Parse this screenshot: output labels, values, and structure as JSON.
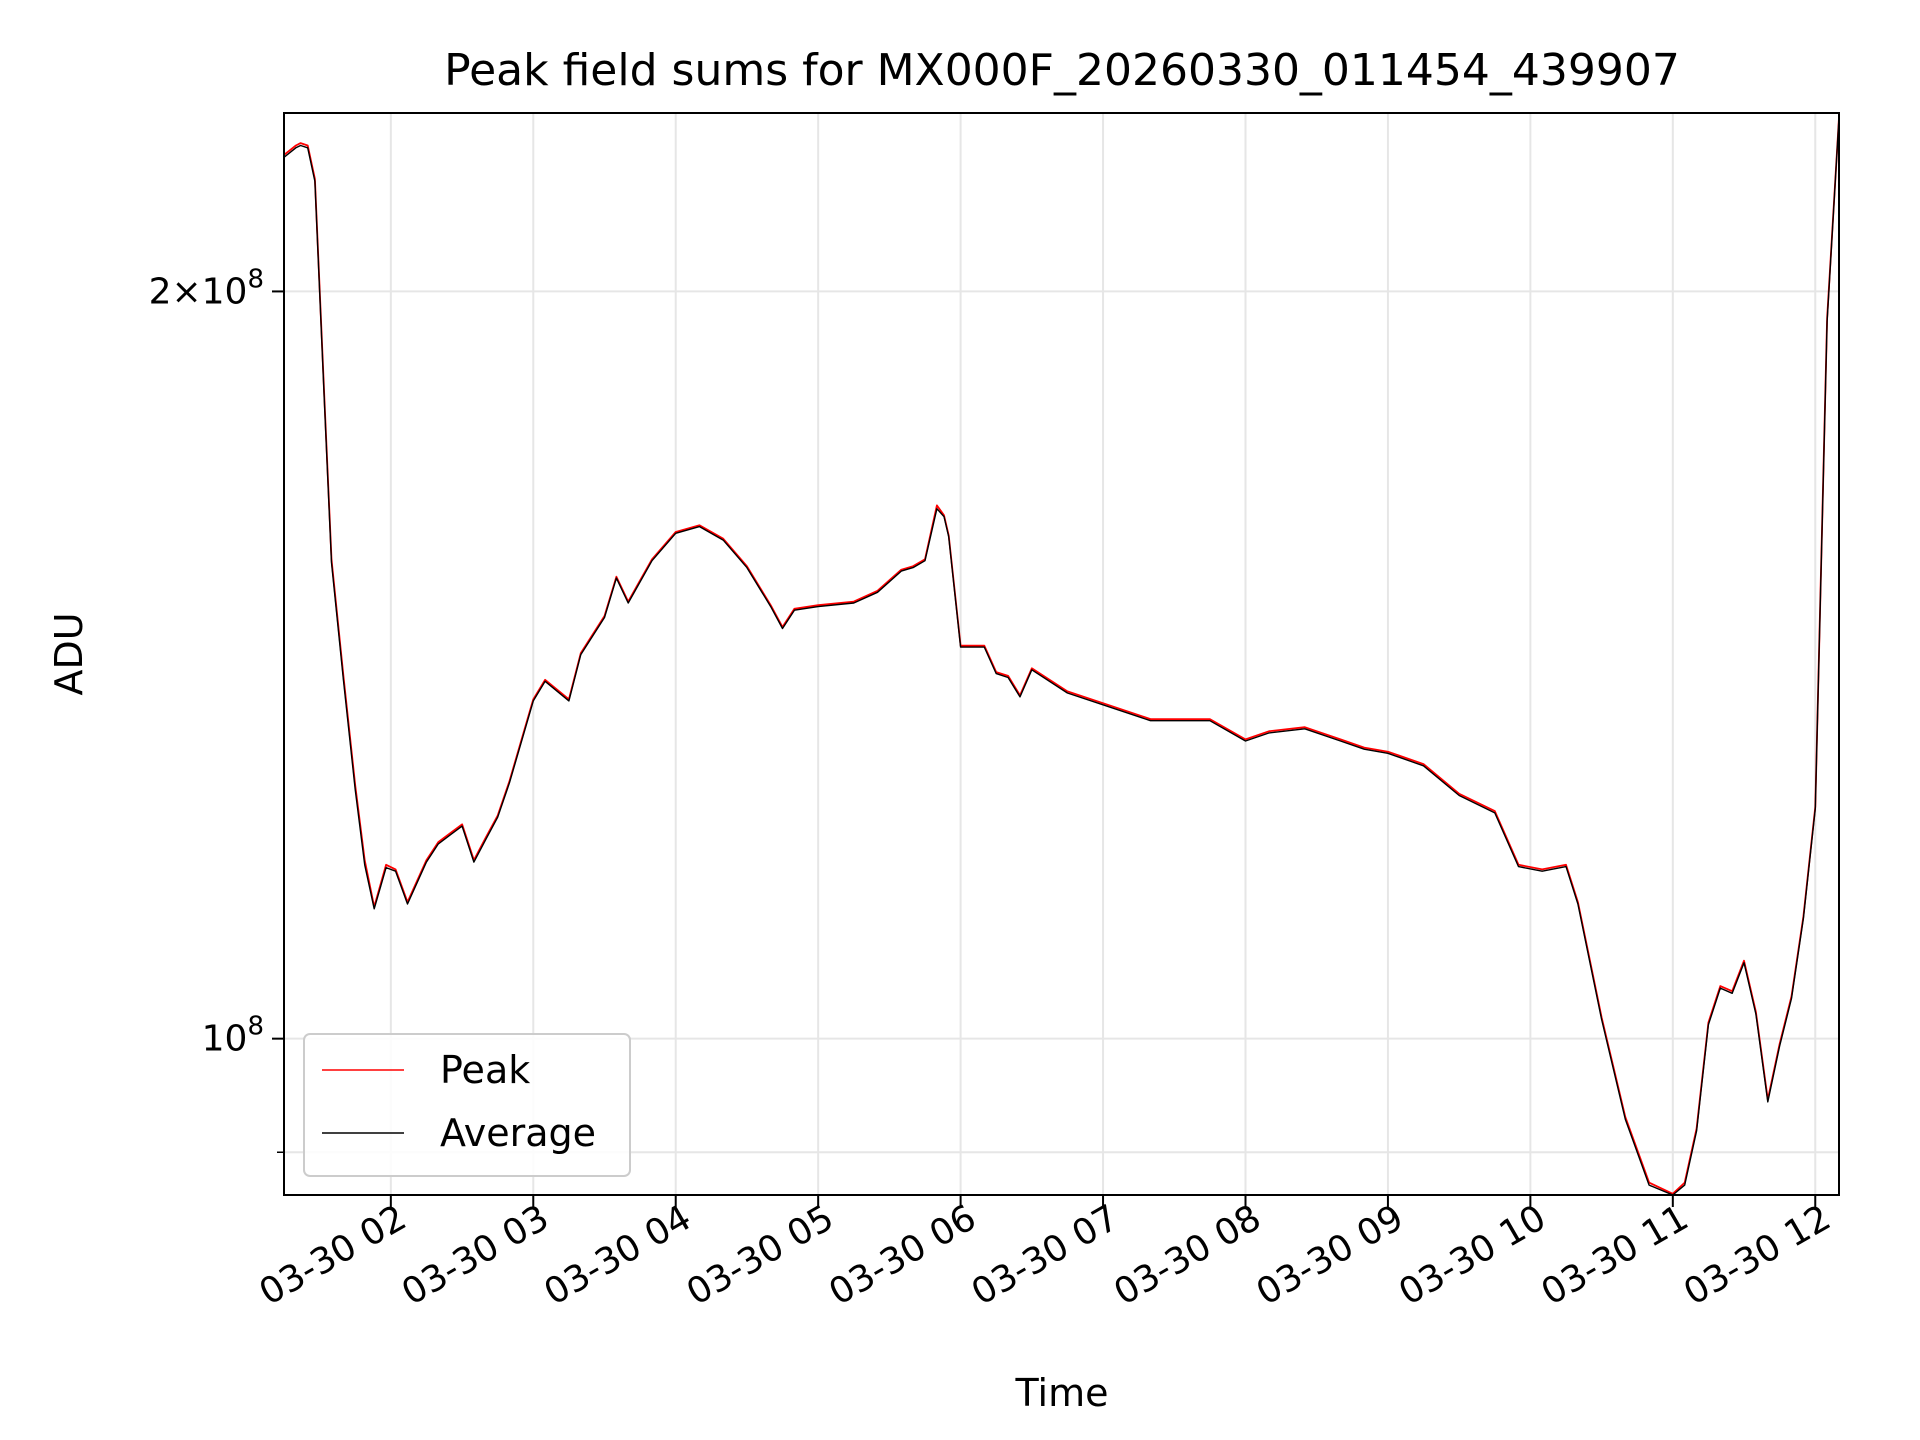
{
  "chart_data": {
    "type": "line",
    "title": "Peak field sums for MX000F_20260330_011454_439907",
    "xlabel": "Time",
    "ylabel": "ADU",
    "y_scale": "log",
    "grid": true,
    "legend_position": "lower-left",
    "colors": {
      "peak": "#ff0000",
      "average": "#000000",
      "grid": "#e6e6e6"
    },
    "xlim": [
      "2026-03-30 01:15",
      "2026-03-30 12:10"
    ],
    "ylim": [
      86500000,
      236000000
    ],
    "x_ticks": [
      "03-30 02",
      "03-30 03",
      "03-30 04",
      "03-30 05",
      "03-30 06",
      "03-30 07",
      "03-30 08",
      "03-30 09",
      "03-30 10",
      "03-30 11",
      "03-30 12"
    ],
    "x_tick_times": [
      "2026-03-30 02:00",
      "2026-03-30 03:00",
      "2026-03-30 04:00",
      "2026-03-30 05:00",
      "2026-03-30 06:00",
      "2026-03-30 07:00",
      "2026-03-30 08:00",
      "2026-03-30 09:00",
      "2026-03-30 10:00",
      "2026-03-30 11:00",
      "2026-03-30 12:00"
    ],
    "y_ticks": [
      {
        "value": 200000000,
        "base": "2×10",
        "exp": "8"
      },
      {
        "value": 100000000,
        "base": "10",
        "exp": "8"
      }
    ],
    "y_minor_ticks": [
      90000000
    ],
    "x": [
      "2026-03-30 01:15",
      "2026-03-30 01:20",
      "2026-03-30 01:22",
      "2026-03-30 01:25",
      "2026-03-30 01:28",
      "2026-03-30 01:32",
      "2026-03-30 01:35",
      "2026-03-30 01:40",
      "2026-03-30 01:45",
      "2026-03-30 01:49",
      "2026-03-30 01:53",
      "2026-03-30 01:58",
      "2026-03-30 02:02",
      "2026-03-30 02:07",
      "2026-03-30 02:15",
      "2026-03-30 02:20",
      "2026-03-30 02:25",
      "2026-03-30 02:30",
      "2026-03-30 02:35",
      "2026-03-30 02:40",
      "2026-03-30 02:45",
      "2026-03-30 02:50",
      "2026-03-30 03:00",
      "2026-03-30 03:05",
      "2026-03-30 03:15",
      "2026-03-30 03:20",
      "2026-03-30 03:30",
      "2026-03-30 03:35",
      "2026-03-30 03:40",
      "2026-03-30 03:50",
      "2026-03-30 04:00",
      "2026-03-30 04:10",
      "2026-03-30 04:20",
      "2026-03-30 04:30",
      "2026-03-30 04:40",
      "2026-03-30 04:45",
      "2026-03-30 04:50",
      "2026-03-30 05:00",
      "2026-03-30 05:15",
      "2026-03-30 05:25",
      "2026-03-30 05:35",
      "2026-03-30 05:40",
      "2026-03-30 05:45",
      "2026-03-30 05:50",
      "2026-03-30 05:53",
      "2026-03-30 05:55",
      "2026-03-30 06:00",
      "2026-03-30 06:10",
      "2026-03-30 06:15",
      "2026-03-30 06:20",
      "2026-03-30 06:25",
      "2026-03-30 06:30",
      "2026-03-30 06:45",
      "2026-03-30 07:00",
      "2026-03-30 07:20",
      "2026-03-30 07:30",
      "2026-03-30 07:45",
      "2026-03-30 08:00",
      "2026-03-30 08:10",
      "2026-03-30 08:25",
      "2026-03-30 08:40",
      "2026-03-30 08:50",
      "2026-03-30 09:00",
      "2026-03-30 09:15",
      "2026-03-30 09:30",
      "2026-03-30 09:45",
      "2026-03-30 09:55",
      "2026-03-30 10:05",
      "2026-03-30 10:15",
      "2026-03-30 10:20",
      "2026-03-30 10:30",
      "2026-03-30 10:40",
      "2026-03-30 10:50",
      "2026-03-30 11:00",
      "2026-03-30 11:05",
      "2026-03-30 11:10",
      "2026-03-30 11:15",
      "2026-03-30 11:20",
      "2026-03-30 11:25",
      "2026-03-30 11:30",
      "2026-03-30 11:35",
      "2026-03-30 11:40",
      "2026-03-30 11:45",
      "2026-03-30 11:50",
      "2026-03-30 11:55",
      "2026-03-30 12:00",
      "2026-03-30 12:05",
      "2026-03-30 12:10"
    ],
    "series": [
      {
        "name": "Peak",
        "values": [
          227000000,
          229000000,
          229500000,
          229000000,
          222000000,
          181000000,
          156000000,
          140000000,
          126500000,
          118000000,
          113000000,
          117500000,
          117000000,
          113500000,
          118000000,
          120000000,
          121000000,
          122000000,
          118000000,
          120500000,
          123000000,
          127000000,
          137000000,
          139500000,
          137000000,
          143000000,
          148000000,
          153500000,
          150000000,
          156000000,
          160000000,
          161000000,
          159000000,
          155000000,
          149500000,
          146500000,
          149000000,
          149500000,
          150000000,
          151500000,
          154500000,
          155000000,
          156000000,
          164000000,
          162500000,
          159500000,
          144000000,
          144000000,
          140500000,
          140000000,
          137500000,
          141000000,
          138000000,
          136500000,
          134500000,
          134500000,
          134500000,
          132000000,
          133000000,
          133500000,
          132000000,
          131000000,
          130500000,
          129000000,
          125500000,
          123500000,
          117500000,
          117000000,
          117500000,
          113500000,
          102000000,
          93000000,
          87500000,
          86600000,
          87500000,
          92000000,
          101500000,
          105000000,
          104500000,
          107500000,
          102500000,
          94500000,
          99500000,
          104000000,
          112000000,
          124000000,
          195000000,
          235000000
        ]
      },
      {
        "name": "Average",
        "values": [
          226500000,
          228500000,
          229000000,
          228500000,
          221500000,
          180500000,
          155500000,
          139500000,
          126000000,
          117500000,
          112800000,
          117200000,
          116800000,
          113300000,
          117800000,
          119800000,
          120800000,
          121800000,
          117800000,
          120300000,
          122800000,
          126800000,
          136800000,
          139300000,
          136800000,
          142800000,
          147800000,
          153300000,
          149800000,
          155800000,
          159800000,
          160800000,
          158800000,
          154800000,
          149300000,
          146300000,
          148800000,
          149300000,
          149800000,
          151300000,
          154300000,
          154800000,
          155800000,
          163500000,
          162300000,
          159300000,
          143800000,
          143800000,
          140300000,
          139800000,
          137300000,
          140800000,
          137800000,
          136300000,
          134300000,
          134300000,
          134300000,
          131800000,
          132800000,
          133300000,
          131800000,
          130800000,
          130300000,
          128800000,
          125300000,
          123300000,
          117300000,
          116800000,
          117300000,
          113300000,
          101800000,
          92800000,
          87300000,
          86500000,
          87300000,
          91800000,
          101300000,
          104800000,
          104300000,
          107300000,
          102300000,
          94300000,
          99300000,
          103800000,
          111800000,
          123800000,
          194500000,
          235000000
        ]
      }
    ]
  }
}
